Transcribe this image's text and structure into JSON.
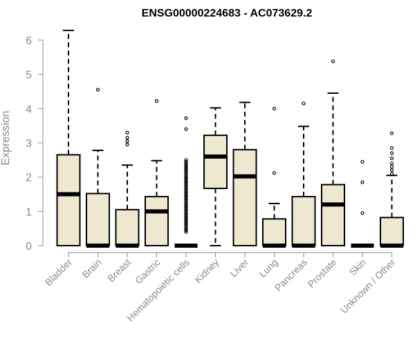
{
  "chart_data": {
    "type": "boxplot",
    "title": "ENSG00000224683 - AC073629.2",
    "ylabel": "Expression",
    "xlabel": "",
    "ylim": [
      0,
      6.3
    ],
    "yticks": [
      0,
      1,
      2,
      3,
      4,
      5,
      6
    ],
    "grid": false,
    "box_fill": "#efe8d0",
    "line_color": "#000000",
    "axis_color": "#8a8a8a",
    "categories": [
      "Bladder",
      "Brain",
      "Breast",
      "Gastric",
      "Hematopoietic cells",
      "Kidney",
      "Liver",
      "Lung",
      "Pancreas",
      "Prostate",
      "Skin",
      "Unknown / Other"
    ],
    "boxes": [
      {
        "min": 0,
        "q1": 0,
        "median": 1.5,
        "q3": 2.65,
        "max": 6.28,
        "outliers": []
      },
      {
        "min": 0,
        "q1": 0,
        "median": 0,
        "q3": 1.52,
        "max": 2.78,
        "outliers": [
          4.55
        ]
      },
      {
        "min": 0,
        "q1": 0,
        "median": 0,
        "q3": 1.05,
        "max": 2.35,
        "outliers": [
          2.95,
          3.05,
          3.15,
          3.3
        ]
      },
      {
        "min": 0,
        "q1": 0,
        "median": 1.0,
        "q3": 1.43,
        "max": 2.48,
        "outliers": [
          4.22
        ]
      },
      {
        "min": 0,
        "q1": 0,
        "median": 0,
        "q3": 0,
        "max": 0,
        "outliers": [
          0.4,
          0.45,
          0.5,
          0.55,
          0.6,
          0.65,
          0.7,
          0.75,
          0.8,
          0.85,
          0.9,
          0.95,
          1.0,
          1.05,
          1.1,
          1.15,
          1.2,
          1.25,
          1.3,
          1.35,
          1.4,
          1.45,
          1.5,
          1.55,
          1.6,
          1.65,
          1.7,
          1.75,
          1.8,
          1.85,
          1.9,
          1.95,
          2.0,
          2.05,
          2.1,
          2.15,
          2.2,
          2.25,
          2.3,
          2.35,
          2.4,
          2.45,
          2.5,
          3.4,
          3.72
        ]
      },
      {
        "min": 0,
        "q1": 1.67,
        "median": 2.6,
        "q3": 3.22,
        "max": 4.02,
        "outliers": []
      },
      {
        "min": 0,
        "q1": 0,
        "median": 2.02,
        "q3": 2.8,
        "max": 4.18,
        "outliers": []
      },
      {
        "min": 0,
        "q1": 0,
        "median": 0,
        "q3": 0.78,
        "max": 1.23,
        "outliers": [
          2.12,
          4.0
        ]
      },
      {
        "min": 0,
        "q1": 0,
        "median": 0,
        "q3": 1.43,
        "max": 3.48,
        "outliers": [
          4.15
        ]
      },
      {
        "min": 0,
        "q1": 0,
        "median": 1.2,
        "q3": 1.78,
        "max": 4.45,
        "outliers": [
          5.38
        ]
      },
      {
        "min": 0,
        "q1": 0,
        "median": 0,
        "q3": 0,
        "max": 0,
        "outliers": [
          0.95,
          1.85,
          2.45
        ]
      },
      {
        "min": 0,
        "q1": 0,
        "median": 0,
        "q3": 0.82,
        "max": 2.05,
        "outliers": [
          2.1,
          2.2,
          2.3,
          2.4,
          2.55,
          2.7,
          2.85,
          3.28
        ]
      }
    ]
  }
}
